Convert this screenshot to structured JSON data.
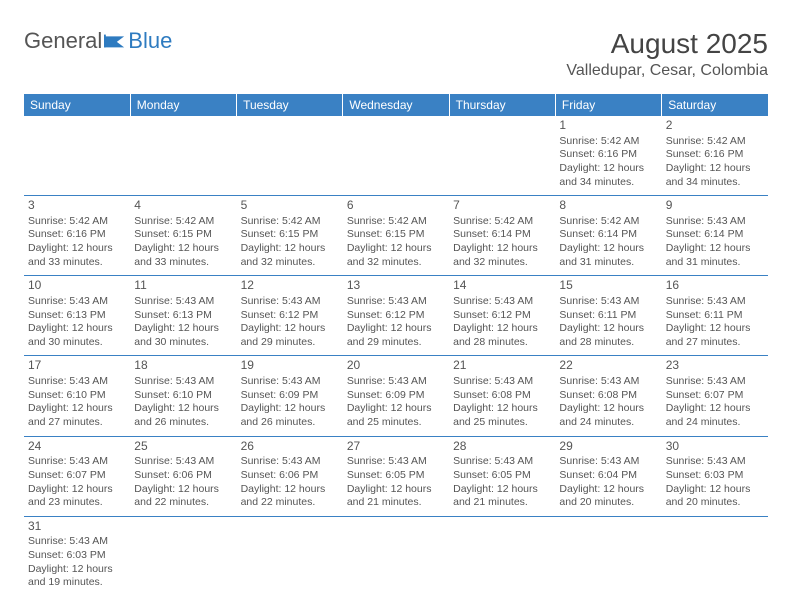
{
  "logo": {
    "text1": "General",
    "text2": "Blue"
  },
  "title": "August 2025",
  "location": "Valledupar, Cesar, Colombia",
  "colors": {
    "header_bg": "#3a81c4",
    "header_text": "#ffffff",
    "border": "#3a81c4",
    "body_text": "#555555",
    "logo_blue": "#2e7bc0"
  },
  "weekdays": [
    "Sunday",
    "Monday",
    "Tuesday",
    "Wednesday",
    "Thursday",
    "Friday",
    "Saturday"
  ],
  "weeks": [
    [
      null,
      null,
      null,
      null,
      null,
      {
        "day": "1",
        "sunrise": "Sunrise: 5:42 AM",
        "sunset": "Sunset: 6:16 PM",
        "daylight1": "Daylight: 12 hours",
        "daylight2": "and 34 minutes."
      },
      {
        "day": "2",
        "sunrise": "Sunrise: 5:42 AM",
        "sunset": "Sunset: 6:16 PM",
        "daylight1": "Daylight: 12 hours",
        "daylight2": "and 34 minutes."
      }
    ],
    [
      {
        "day": "3",
        "sunrise": "Sunrise: 5:42 AM",
        "sunset": "Sunset: 6:16 PM",
        "daylight1": "Daylight: 12 hours",
        "daylight2": "and 33 minutes."
      },
      {
        "day": "4",
        "sunrise": "Sunrise: 5:42 AM",
        "sunset": "Sunset: 6:15 PM",
        "daylight1": "Daylight: 12 hours",
        "daylight2": "and 33 minutes."
      },
      {
        "day": "5",
        "sunrise": "Sunrise: 5:42 AM",
        "sunset": "Sunset: 6:15 PM",
        "daylight1": "Daylight: 12 hours",
        "daylight2": "and 32 minutes."
      },
      {
        "day": "6",
        "sunrise": "Sunrise: 5:42 AM",
        "sunset": "Sunset: 6:15 PM",
        "daylight1": "Daylight: 12 hours",
        "daylight2": "and 32 minutes."
      },
      {
        "day": "7",
        "sunrise": "Sunrise: 5:42 AM",
        "sunset": "Sunset: 6:14 PM",
        "daylight1": "Daylight: 12 hours",
        "daylight2": "and 32 minutes."
      },
      {
        "day": "8",
        "sunrise": "Sunrise: 5:42 AM",
        "sunset": "Sunset: 6:14 PM",
        "daylight1": "Daylight: 12 hours",
        "daylight2": "and 31 minutes."
      },
      {
        "day": "9",
        "sunrise": "Sunrise: 5:43 AM",
        "sunset": "Sunset: 6:14 PM",
        "daylight1": "Daylight: 12 hours",
        "daylight2": "and 31 minutes."
      }
    ],
    [
      {
        "day": "10",
        "sunrise": "Sunrise: 5:43 AM",
        "sunset": "Sunset: 6:13 PM",
        "daylight1": "Daylight: 12 hours",
        "daylight2": "and 30 minutes."
      },
      {
        "day": "11",
        "sunrise": "Sunrise: 5:43 AM",
        "sunset": "Sunset: 6:13 PM",
        "daylight1": "Daylight: 12 hours",
        "daylight2": "and 30 minutes."
      },
      {
        "day": "12",
        "sunrise": "Sunrise: 5:43 AM",
        "sunset": "Sunset: 6:12 PM",
        "daylight1": "Daylight: 12 hours",
        "daylight2": "and 29 minutes."
      },
      {
        "day": "13",
        "sunrise": "Sunrise: 5:43 AM",
        "sunset": "Sunset: 6:12 PM",
        "daylight1": "Daylight: 12 hours",
        "daylight2": "and 29 minutes."
      },
      {
        "day": "14",
        "sunrise": "Sunrise: 5:43 AM",
        "sunset": "Sunset: 6:12 PM",
        "daylight1": "Daylight: 12 hours",
        "daylight2": "and 28 minutes."
      },
      {
        "day": "15",
        "sunrise": "Sunrise: 5:43 AM",
        "sunset": "Sunset: 6:11 PM",
        "daylight1": "Daylight: 12 hours",
        "daylight2": "and 28 minutes."
      },
      {
        "day": "16",
        "sunrise": "Sunrise: 5:43 AM",
        "sunset": "Sunset: 6:11 PM",
        "daylight1": "Daylight: 12 hours",
        "daylight2": "and 27 minutes."
      }
    ],
    [
      {
        "day": "17",
        "sunrise": "Sunrise: 5:43 AM",
        "sunset": "Sunset: 6:10 PM",
        "daylight1": "Daylight: 12 hours",
        "daylight2": "and 27 minutes."
      },
      {
        "day": "18",
        "sunrise": "Sunrise: 5:43 AM",
        "sunset": "Sunset: 6:10 PM",
        "daylight1": "Daylight: 12 hours",
        "daylight2": "and 26 minutes."
      },
      {
        "day": "19",
        "sunrise": "Sunrise: 5:43 AM",
        "sunset": "Sunset: 6:09 PM",
        "daylight1": "Daylight: 12 hours",
        "daylight2": "and 26 minutes."
      },
      {
        "day": "20",
        "sunrise": "Sunrise: 5:43 AM",
        "sunset": "Sunset: 6:09 PM",
        "daylight1": "Daylight: 12 hours",
        "daylight2": "and 25 minutes."
      },
      {
        "day": "21",
        "sunrise": "Sunrise: 5:43 AM",
        "sunset": "Sunset: 6:08 PM",
        "daylight1": "Daylight: 12 hours",
        "daylight2": "and 25 minutes."
      },
      {
        "day": "22",
        "sunrise": "Sunrise: 5:43 AM",
        "sunset": "Sunset: 6:08 PM",
        "daylight1": "Daylight: 12 hours",
        "daylight2": "and 24 minutes."
      },
      {
        "day": "23",
        "sunrise": "Sunrise: 5:43 AM",
        "sunset": "Sunset: 6:07 PM",
        "daylight1": "Daylight: 12 hours",
        "daylight2": "and 24 minutes."
      }
    ],
    [
      {
        "day": "24",
        "sunrise": "Sunrise: 5:43 AM",
        "sunset": "Sunset: 6:07 PM",
        "daylight1": "Daylight: 12 hours",
        "daylight2": "and 23 minutes."
      },
      {
        "day": "25",
        "sunrise": "Sunrise: 5:43 AM",
        "sunset": "Sunset: 6:06 PM",
        "daylight1": "Daylight: 12 hours",
        "daylight2": "and 22 minutes."
      },
      {
        "day": "26",
        "sunrise": "Sunrise: 5:43 AM",
        "sunset": "Sunset: 6:06 PM",
        "daylight1": "Daylight: 12 hours",
        "daylight2": "and 22 minutes."
      },
      {
        "day": "27",
        "sunrise": "Sunrise: 5:43 AM",
        "sunset": "Sunset: 6:05 PM",
        "daylight1": "Daylight: 12 hours",
        "daylight2": "and 21 minutes."
      },
      {
        "day": "28",
        "sunrise": "Sunrise: 5:43 AM",
        "sunset": "Sunset: 6:05 PM",
        "daylight1": "Daylight: 12 hours",
        "daylight2": "and 21 minutes."
      },
      {
        "day": "29",
        "sunrise": "Sunrise: 5:43 AM",
        "sunset": "Sunset: 6:04 PM",
        "daylight1": "Daylight: 12 hours",
        "daylight2": "and 20 minutes."
      },
      {
        "day": "30",
        "sunrise": "Sunrise: 5:43 AM",
        "sunset": "Sunset: 6:03 PM",
        "daylight1": "Daylight: 12 hours",
        "daylight2": "and 20 minutes."
      }
    ],
    [
      {
        "day": "31",
        "sunrise": "Sunrise: 5:43 AM",
        "sunset": "Sunset: 6:03 PM",
        "daylight1": "Daylight: 12 hours",
        "daylight2": "and 19 minutes."
      },
      null,
      null,
      null,
      null,
      null,
      null
    ]
  ]
}
